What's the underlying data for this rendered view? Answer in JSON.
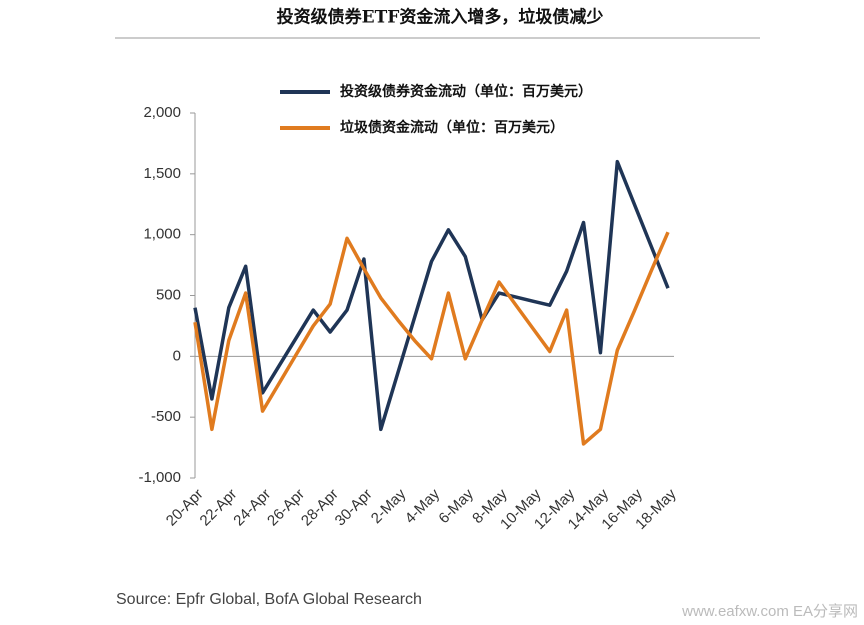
{
  "chart_data": {
    "type": "line",
    "title": "投资级债券ETF资金流入增多，垃圾债减少",
    "categories": [
      "20-Apr",
      null,
      "22-Apr",
      null,
      "24-Apr",
      null,
      "26-Apr",
      null,
      "28-Apr",
      null,
      "30-Apr",
      null,
      "2-May",
      null,
      "4-May",
      null,
      "6-May",
      null,
      "8-May",
      null,
      "10-May",
      null,
      "12-May",
      null,
      "14-May",
      null,
      "16-May",
      null,
      "18-May"
    ],
    "series": [
      {
        "name": "投资级债券资金流动（单位：百万美元）",
        "color": "#1f3556",
        "values": [
          400,
          -350,
          400,
          740,
          -300,
          -73,
          153,
          380,
          200,
          380,
          800,
          -600,
          -140,
          320,
          780,
          1040,
          820,
          300,
          520,
          487,
          453,
          420,
          700,
          1100,
          30,
          1600,
          1253,
          907,
          560
        ]
      },
      {
        "name": "垃圾债资金流动（单位：百万美元）",
        "color": "#e07b1f",
        "values": [
          280,
          -600,
          130,
          520,
          -450,
          -217,
          17,
          250,
          430,
          970,
          720,
          480,
          300,
          130,
          -20,
          520,
          -20,
          300,
          610,
          420,
          230,
          40,
          380,
          -720,
          -600,
          50,
          370,
          700,
          1020
        ]
      }
    ],
    "ylim": [
      -1000,
      2000
    ],
    "yticks": [
      {
        "value": -1000,
        "label": "-1,000"
      },
      -500,
      0,
      500,
      {
        "value": 1000,
        "label": "1,000"
      },
      {
        "value": 1500,
        "label": "1,500"
      },
      {
        "value": 2000,
        "label": "2,000"
      }
    ],
    "legend": "top",
    "source": "Source: Epfr Global, BofA Global Research",
    "watermark": "www.eafxw.com  EA分享网"
  }
}
